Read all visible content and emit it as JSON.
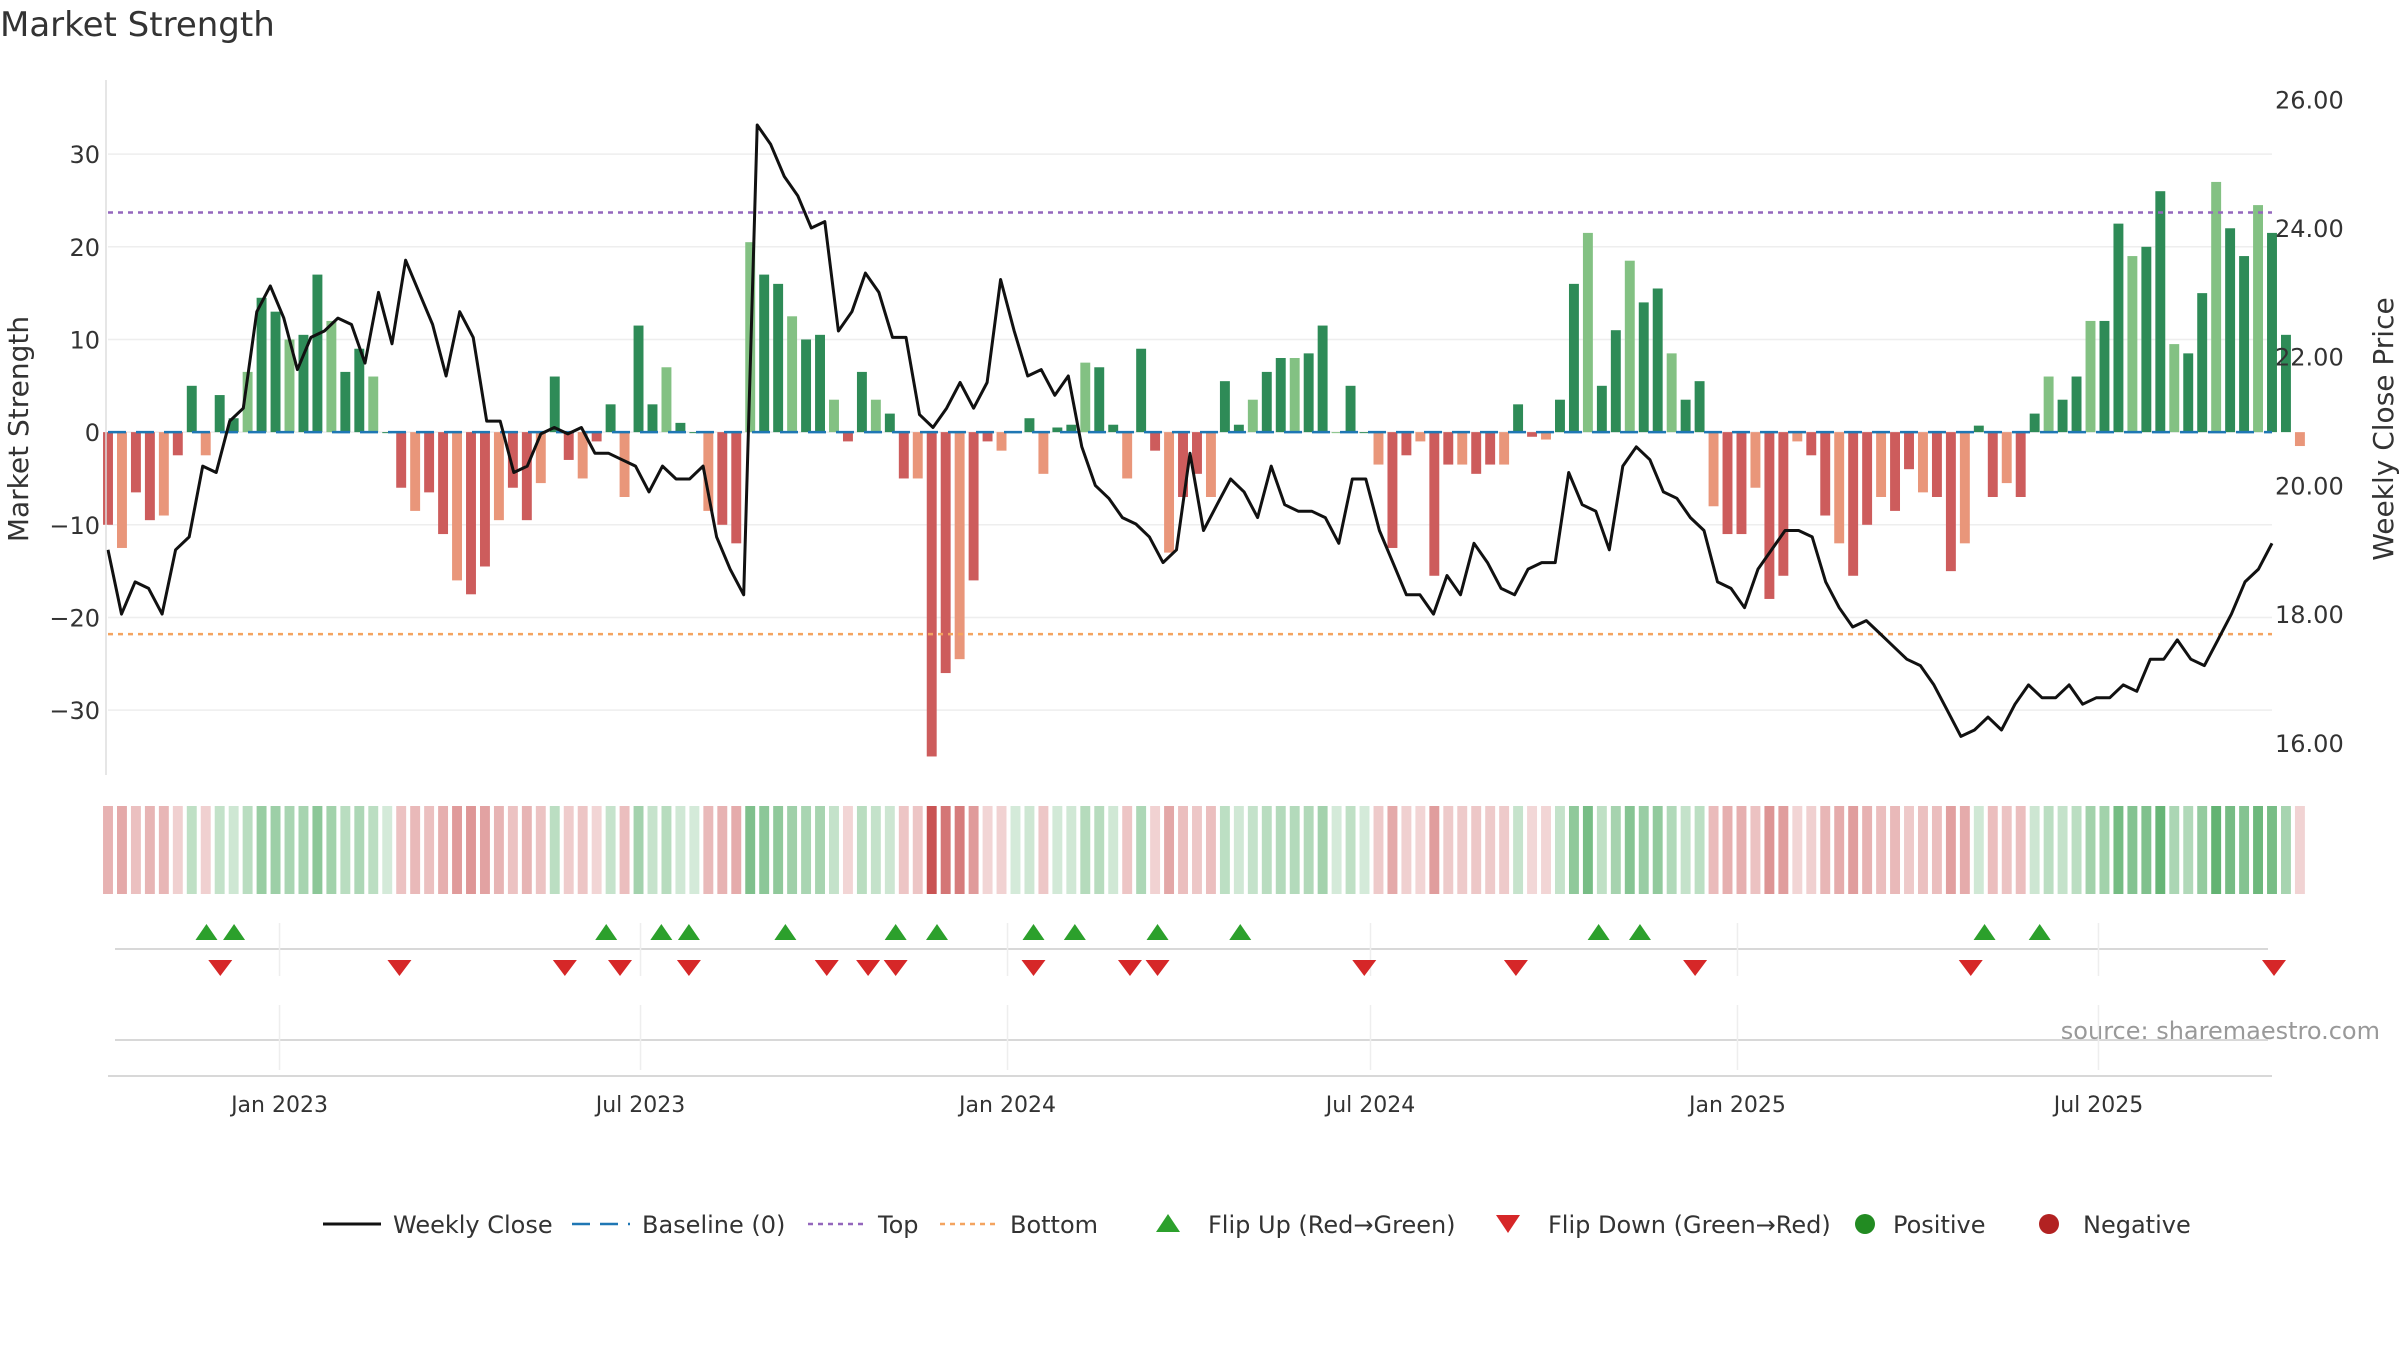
{
  "chart_data": {
    "type": "bar",
    "title": "Market Strength",
    "ylabel_left": "Market Strength",
    "ylabel_right": "Weekly Close Price",
    "y_left_range": [
      -37,
      38
    ],
    "y_right_range": [
      15.5,
      26.3
    ],
    "y_left_ticks": [
      30,
      20,
      10,
      0,
      -10,
      -20,
      -30
    ],
    "y_right_ticks": [
      "26.00",
      "24.00",
      "22.00",
      "20.00",
      "18.00",
      "16.00"
    ],
    "x_range": [
      "2022-10-07",
      "2025-09-26"
    ],
    "x_ticks": [
      {
        "label": "Jan 2023",
        "date": "2023-01-01"
      },
      {
        "label": "Jul 2023",
        "date": "2023-07-01"
      },
      {
        "label": "Jan 2024",
        "date": "2024-01-01"
      },
      {
        "label": "Jul 2024",
        "date": "2024-07-01"
      },
      {
        "label": "Jan 2025",
        "date": "2025-01-01"
      },
      {
        "label": "Jul 2025",
        "date": "2025-07-01"
      }
    ],
    "reference_lines": {
      "top": 23.7,
      "bottom": -21.8,
      "baseline": 0
    },
    "start_date": "2022-10-07",
    "interval_days": 7,
    "strength": [
      -10,
      -12.5,
      -6.5,
      -9.5,
      -9,
      -2.5,
      5,
      -2.5,
      4,
      1.5,
      6.5,
      14.5,
      13,
      10,
      10.5,
      17,
      12,
      6.5,
      9,
      6,
      0,
      -6,
      -8.5,
      -6.5,
      -11,
      -16,
      -17.5,
      -14.5,
      -9.5,
      -6,
      -9.5,
      -5.5,
      6,
      -3,
      -5,
      -1,
      3,
      -7,
      11.5,
      3,
      7,
      1,
      0,
      -8.5,
      -10,
      -12,
      20.5,
      17,
      16,
      12.5,
      10,
      10.5,
      3.5,
      -1,
      6.5,
      3.5,
      2,
      -5,
      -5,
      -35,
      -26,
      -24.5,
      -16,
      -1,
      -2,
      0,
      1.5,
      -4.5,
      0.5,
      0.8,
      7.5,
      7,
      0.8,
      -5,
      9,
      -2,
      -13,
      -7,
      -4.5,
      -7,
      5.5,
      0.8,
      3.5,
      6.5,
      8,
      8,
      8.5,
      11.5,
      0,
      5,
      0,
      -3.5,
      -12.5,
      -2.5,
      -1,
      -15.5,
      -3.5,
      -3.5,
      -4.5,
      -3.5,
      -3.5,
      3,
      -0.5,
      -0.8,
      3.5,
      16,
      21.5,
      5,
      11,
      18.5,
      14,
      15.5,
      8.5,
      3.5,
      5.5,
      -8,
      -11,
      -11,
      -6,
      -18,
      -15.5,
      -1,
      -2.5,
      -9,
      -12,
      -15.5,
      -10,
      -7,
      -8.5,
      -4,
      -6.5,
      -7,
      -15,
      -12,
      0.7,
      -7,
      -5.5,
      -7,
      2,
      6,
      3.5,
      6,
      12,
      12,
      22.5,
      19,
      20,
      26,
      9.5,
      8.5,
      15,
      27,
      22,
      19,
      24.5,
      21.5,
      10.5,
      -1.5
    ],
    "colors": {
      "strong_green": "#2e8b57",
      "light_green": "#83c183",
      "strong_red": "#cd5c5c",
      "light_red": "#e9967a",
      "top_line": "#9467bd",
      "bottom_line": "#f4a460",
      "baseline": "#1f77b4",
      "close_line": "#111111",
      "flip_up": "#2ca02c",
      "flip_down": "#d62728",
      "positive_dot": "#228b22",
      "negative_dot": "#b22222"
    },
    "close": [
      [
        0,
        19.0
      ],
      [
        2,
        18.0
      ],
      [
        4,
        18.5
      ],
      [
        6,
        18.4
      ],
      [
        8,
        18.0
      ],
      [
        10,
        19.0
      ],
      [
        12,
        19.2
      ],
      [
        14,
        20.3
      ],
      [
        16,
        20.2
      ],
      [
        18,
        21.0
      ],
      [
        20,
        21.2
      ],
      [
        22,
        22.7
      ],
      [
        24,
        23.1
      ],
      [
        26,
        22.6
      ],
      [
        28,
        21.8
      ],
      [
        30,
        22.3
      ],
      [
        32,
        22.4
      ],
      [
        34,
        22.6
      ],
      [
        36,
        22.5
      ],
      [
        38,
        21.9
      ],
      [
        40,
        23.0
      ],
      [
        42,
        22.2
      ],
      [
        44,
        23.5
      ],
      [
        46,
        23.0
      ],
      [
        48,
        22.5
      ],
      [
        50,
        21.7
      ],
      [
        52,
        22.7
      ],
      [
        54,
        22.3
      ],
      [
        56,
        21.0
      ],
      [
        58,
        21.0
      ],
      [
        60,
        20.2
      ],
      [
        62,
        20.3
      ],
      [
        64,
        20.8
      ],
      [
        66,
        20.9
      ],
      [
        68,
        20.8
      ],
      [
        70,
        20.9
      ],
      [
        72,
        20.5
      ],
      [
        74,
        20.5
      ],
      [
        76,
        20.4
      ],
      [
        78,
        20.3
      ],
      [
        80,
        19.9
      ],
      [
        82,
        20.3
      ],
      [
        84,
        20.1
      ],
      [
        86,
        20.1
      ],
      [
        88,
        20.3
      ],
      [
        90,
        19.2
      ],
      [
        92,
        18.7
      ],
      [
        94,
        18.3
      ],
      [
        96,
        25.6
      ],
      [
        98,
        25.3
      ],
      [
        100,
        24.8
      ],
      [
        102,
        24.5
      ],
      [
        104,
        24.0
      ],
      [
        106,
        24.1
      ],
      [
        108,
        22.4
      ],
      [
        110,
        22.7
      ],
      [
        112,
        23.3
      ],
      [
        114,
        23.0
      ],
      [
        116,
        22.3
      ],
      [
        118,
        22.3
      ],
      [
        120,
        21.1
      ],
      [
        122,
        20.9
      ],
      [
        124,
        21.2
      ],
      [
        126,
        21.6
      ],
      [
        128,
        21.2
      ],
      [
        130,
        21.6
      ],
      [
        132,
        23.2
      ],
      [
        134,
        22.4
      ],
      [
        136,
        21.7
      ],
      [
        138,
        21.8
      ],
      [
        140,
        21.4
      ],
      [
        142,
        21.7
      ],
      [
        144,
        20.6
      ],
      [
        146,
        20.0
      ],
      [
        148,
        19.8
      ],
      [
        150,
        19.5
      ],
      [
        152,
        19.4
      ],
      [
        154,
        19.2
      ],
      [
        156,
        18.8
      ],
      [
        158,
        19.0
      ],
      [
        160,
        20.5
      ],
      [
        162,
        19.3
      ],
      [
        164,
        19.7
      ],
      [
        166,
        20.1
      ],
      [
        168,
        19.9
      ],
      [
        170,
        19.5
      ],
      [
        172,
        20.3
      ],
      [
        174,
        19.7
      ],
      [
        176,
        19.6
      ],
      [
        178,
        19.6
      ],
      [
        180,
        19.5
      ],
      [
        182,
        19.1
      ],
      [
        184,
        20.1
      ],
      [
        186,
        20.1
      ],
      [
        188,
        19.3
      ],
      [
        190,
        18.8
      ],
      [
        192,
        18.3
      ],
      [
        194,
        18.3
      ],
      [
        196,
        18.0
      ],
      [
        198,
        18.6
      ],
      [
        200,
        18.3
      ],
      [
        202,
        19.1
      ],
      [
        204,
        18.8
      ],
      [
        206,
        18.4
      ],
      [
        208,
        18.3
      ],
      [
        210,
        18.7
      ],
      [
        212,
        18.8
      ],
      [
        214,
        18.8
      ],
      [
        216,
        20.2
      ],
      [
        218,
        19.7
      ],
      [
        220,
        19.6
      ],
      [
        222,
        19.0
      ],
      [
        224,
        20.3
      ],
      [
        226,
        20.6
      ],
      [
        228,
        20.4
      ],
      [
        230,
        19.9
      ],
      [
        232,
        19.8
      ],
      [
        234,
        19.5
      ],
      [
        236,
        19.3
      ],
      [
        238,
        18.5
      ],
      [
        240,
        18.4
      ],
      [
        242,
        18.1
      ],
      [
        244,
        18.7
      ],
      [
        246,
        19.0
      ],
      [
        248,
        19.3
      ],
      [
        250,
        19.3
      ],
      [
        252,
        19.2
      ],
      [
        254,
        18.5
      ],
      [
        256,
        18.1
      ],
      [
        258,
        17.8
      ],
      [
        260,
        17.9
      ],
      [
        262,
        17.7
      ],
      [
        264,
        17.5
      ],
      [
        266,
        17.3
      ],
      [
        268,
        17.2
      ],
      [
        270,
        16.9
      ],
      [
        272,
        16.5
      ],
      [
        274,
        16.1
      ],
      [
        276,
        16.2
      ],
      [
        278,
        16.4
      ],
      [
        280,
        16.2
      ],
      [
        282,
        16.6
      ],
      [
        284,
        16.9
      ],
      [
        286,
        16.7
      ],
      [
        288,
        16.7
      ],
      [
        290,
        16.9
      ],
      [
        292,
        16.6
      ],
      [
        294,
        16.7
      ],
      [
        296,
        16.7
      ],
      [
        298,
        16.9
      ],
      [
        300,
        16.8
      ],
      [
        302,
        17.3
      ],
      [
        304,
        17.3
      ],
      [
        306,
        17.6
      ],
      [
        308,
        17.3
      ],
      [
        310,
        17.2
      ],
      [
        312,
        17.6
      ],
      [
        314,
        18.0
      ],
      [
        316,
        18.5
      ],
      [
        318,
        18.7
      ],
      [
        320,
        19.1
      ]
    ],
    "flip_up_weeks": [
      7,
      9,
      36,
      40,
      42,
      49,
      57,
      60,
      67,
      70,
      76,
      82,
      108,
      111,
      136,
      140
    ],
    "flip_down_weeks": [
      8,
      21,
      33,
      37,
      42,
      52,
      55,
      57,
      67,
      74,
      76,
      91,
      102,
      115,
      135,
      157
    ],
    "legend": [
      {
        "key": "close",
        "label": "Weekly Close"
      },
      {
        "key": "baseline",
        "label": "Baseline (0)"
      },
      {
        "key": "top",
        "label": "Top"
      },
      {
        "key": "bottom",
        "label": "Bottom"
      },
      {
        "key": "flip_up",
        "label": "Flip Up (Red→Green)"
      },
      {
        "key": "flip_down",
        "label": "Flip Down (Green→Red)"
      },
      {
        "key": "positive",
        "label": "Positive"
      },
      {
        "key": "negative",
        "label": "Negative"
      }
    ],
    "legend_position": "bottom-center"
  },
  "source": "source: sharemaestro.com"
}
